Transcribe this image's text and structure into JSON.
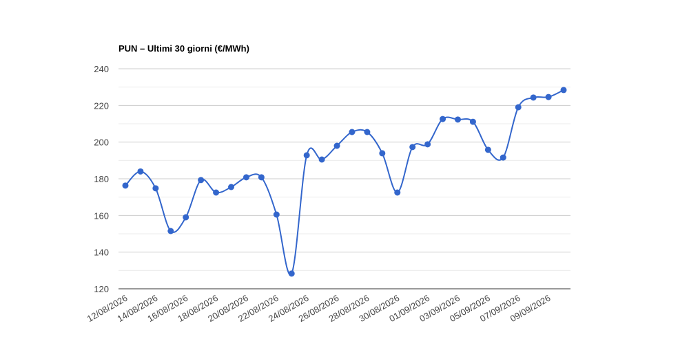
{
  "chart_data": {
    "type": "line",
    "title": "PUN – Ultimi 30 giorni (€/MWh)",
    "categories": [
      "12/08/2026",
      null,
      "14/08/2026",
      null,
      "16/08/2026",
      null,
      "18/08/2026",
      null,
      "20/08/2026",
      null,
      "22/08/2026",
      null,
      "24/08/2026",
      null,
      "26/08/2026",
      null,
      "28/08/2026",
      null,
      "30/08/2026",
      null,
      "01/09/2026",
      null,
      "03/09/2026",
      null,
      "05/09/2026",
      null,
      "07/09/2026",
      null,
      "09/09/2026",
      null
    ],
    "series": [
      {
        "name": "PUN",
        "color": "#3366cc",
        "values": [
          176.3,
          184,
          174.8,
          151.5,
          159,
          179.3,
          172.5,
          175.5,
          180.8,
          180.8,
          160.5,
          128.3,
          192.8,
          190.5,
          198,
          205.5,
          205.5,
          193.9,
          172.5,
          197.3,
          198.8,
          212.6,
          212.3,
          211.1,
          195.8,
          191.6,
          219,
          224.3,
          224.6,
          228.4
        ]
      }
    ],
    "ylim": [
      120,
      240
    ],
    "yticks": [
      120,
      140,
      160,
      180,
      200,
      220,
      240
    ],
    "yminorticks": [
      130,
      150,
      170,
      190,
      210,
      230
    ],
    "grid": true,
    "smooth": true
  }
}
